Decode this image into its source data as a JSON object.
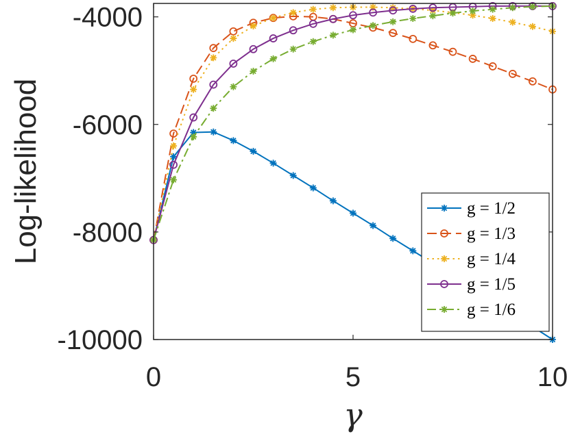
{
  "chart_data": {
    "type": "line",
    "xlabel": "γ",
    "ylabel": "Log-likelihood",
    "xlim": [
      0,
      10
    ],
    "ylim": [
      -10000,
      -3750
    ],
    "xticks": [
      0,
      5,
      10
    ],
    "xtick_labels": [
      "0",
      "5",
      "10"
    ],
    "yticks": [
      -10000,
      -8000,
      -6000,
      -4000
    ],
    "ytick_labels": [
      "-10000",
      "-8000",
      "-6000",
      "-4000"
    ],
    "grid": false,
    "legend_position": "bottom-right",
    "x": [
      0,
      0.5,
      1,
      1.5,
      2,
      2.5,
      3,
      3.5,
      4,
      4.5,
      5,
      5.5,
      6,
      6.5,
      7,
      7.5,
      8,
      8.5,
      9,
      9.5,
      10
    ],
    "series": [
      {
        "name": "g = 1/2",
        "color": "#0072BD",
        "line": "solid",
        "marker": "asterisk",
        "values": [
          -8150,
          -6600,
          -6150,
          -6140,
          -6300,
          -6500,
          -6720,
          -6950,
          -7180,
          -7420,
          -7650,
          -7880,
          -8120,
          -8350,
          -8580,
          -8820,
          -9050,
          -9280,
          -9520,
          -9760,
          -10000
        ]
      },
      {
        "name": "g = 1/3",
        "color": "#D95319",
        "line": "dashed",
        "marker": "circle",
        "values": [
          -8150,
          -6170,
          -5150,
          -4580,
          -4270,
          -4110,
          -4020,
          -3990,
          -4000,
          -4040,
          -4120,
          -4200,
          -4300,
          -4410,
          -4530,
          -4650,
          -4780,
          -4920,
          -5060,
          -5200,
          -5350
        ]
      },
      {
        "name": "g = 1/4",
        "color": "#EDB120",
        "line": "dotted",
        "marker": "asterisk",
        "values": [
          -8150,
          -6400,
          -5350,
          -4760,
          -4400,
          -4170,
          -4020,
          -3920,
          -3860,
          -3830,
          -3820,
          -3820,
          -3830,
          -3850,
          -3880,
          -3920,
          -3970,
          -4030,
          -4100,
          -4180,
          -4270
        ]
      },
      {
        "name": "g = 1/5",
        "color": "#7E2F8E",
        "line": "solid",
        "marker": "circle",
        "values": [
          -8150,
          -6750,
          -5870,
          -5260,
          -4870,
          -4600,
          -4400,
          -4250,
          -4130,
          -4040,
          -3970,
          -3920,
          -3880,
          -3850,
          -3830,
          -3820,
          -3810,
          -3800,
          -3800,
          -3800,
          -3800
        ]
      },
      {
        "name": "g = 1/6",
        "color": "#77AC30",
        "line": "dashdot",
        "marker": "asterisk",
        "values": [
          -8150,
          -7030,
          -6230,
          -5700,
          -5300,
          -5010,
          -4780,
          -4600,
          -4460,
          -4340,
          -4240,
          -4160,
          -4090,
          -4030,
          -3980,
          -3930,
          -3890,
          -3860,
          -3830,
          -3810,
          -3800
        ]
      }
    ]
  }
}
